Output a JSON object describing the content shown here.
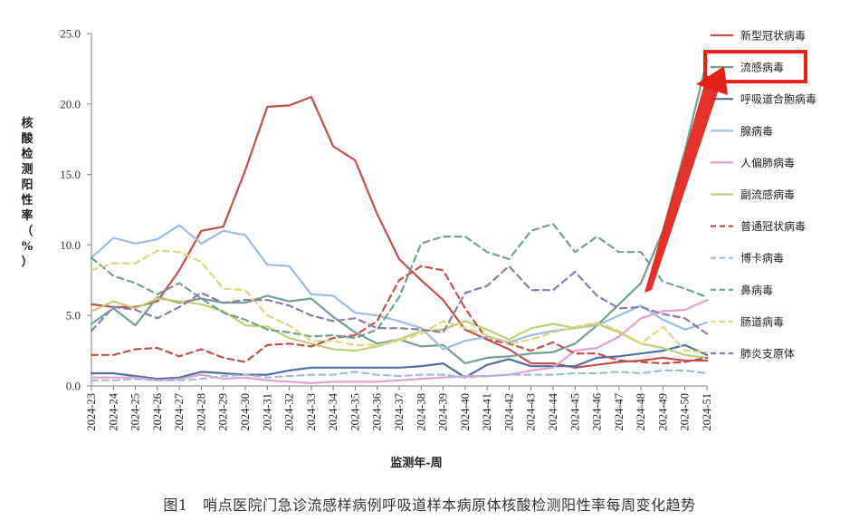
{
  "figure_caption": "图1　哨点医院门急诊流感样病例呼吸道样本病原体核酸检测阳性率每周变化趋势",
  "highlight": {
    "target": "流感病毒",
    "color": "#e32019"
  },
  "chart_data": {
    "type": "line",
    "xlabel": "监测年-周",
    "ylabel": "核酸检测阳性率（%）",
    "ylim": [
      0,
      25
    ],
    "yticks": [
      "0.0",
      "5.0",
      "10.0",
      "15.0",
      "20.0",
      "25.0"
    ],
    "grid": false,
    "legend_position": "right",
    "categories": [
      "2024-23",
      "2024-24",
      "2024-25",
      "2024-26",
      "2024-27",
      "2024-28",
      "2024-29",
      "2024-30",
      "2024-31",
      "2024-32",
      "2024-33",
      "2024-34",
      "2024-35",
      "2024-36",
      "2024-37",
      "2024-38",
      "2024-39",
      "2024-40",
      "2024-41",
      "2024-42",
      "2024-43",
      "2024-44",
      "2024-45",
      "2024-46",
      "2024-47",
      "2024-48",
      "2024-49",
      "2024-50",
      "2024-51"
    ],
    "series": [
      {
        "name": "新型冠状病毒",
        "color": "#c0504d",
        "dash": false,
        "values": [
          5.8,
          5.6,
          5.6,
          6.0,
          8.2,
          11.0,
          11.3,
          15.3,
          19.8,
          19.9,
          20.5,
          17.0,
          16.0,
          12.2,
          9.0,
          7.5,
          6.1,
          4.0,
          3.3,
          2.6,
          1.6,
          1.6,
          1.3,
          1.5,
          1.7,
          1.8,
          2.0,
          1.8,
          1.8
        ]
      },
      {
        "name": "流感病毒",
        "color": "#73a08e",
        "dash": false,
        "values": [
          4.4,
          5.5,
          4.3,
          6.3,
          5.9,
          6.2,
          5.9,
          5.9,
          6.4,
          6.0,
          6.2,
          4.9,
          3.8,
          3.0,
          3.3,
          2.8,
          2.9,
          1.6,
          2.0,
          2.1,
          2.3,
          2.4,
          3.0,
          4.3,
          5.8,
          7.3,
          11.0,
          16.7,
          23.1
        ]
      },
      {
        "name": "呼吸道合胞病毒",
        "color": "#4f6fa0",
        "dash": false,
        "values": [
          0.9,
          0.9,
          0.7,
          0.5,
          0.6,
          1.0,
          0.9,
          0.8,
          0.8,
          1.1,
          1.3,
          1.3,
          1.3,
          1.3,
          1.3,
          1.4,
          1.6,
          0.6,
          1.5,
          1.9,
          1.4,
          1.4,
          1.4,
          2.0,
          2.1,
          2.3,
          2.5,
          2.9,
          2.2
        ]
      },
      {
        "name": "腺病毒",
        "color": "#9dbce0",
        "dash": false,
        "values": [
          9.1,
          10.5,
          10.1,
          10.4,
          11.4,
          10.1,
          11.0,
          10.7,
          8.6,
          8.5,
          6.5,
          6.4,
          5.2,
          5.0,
          4.6,
          4.1,
          2.6,
          3.2,
          3.5,
          3.1,
          3.6,
          3.9,
          4.1,
          4.3,
          5.0,
          5.7,
          4.7,
          4.0,
          4.5
        ]
      },
      {
        "name": "人偏肺病毒",
        "color": "#e3a0c8",
        "dash": false,
        "values": [
          0.6,
          0.6,
          0.6,
          0.4,
          0.5,
          0.8,
          0.5,
          0.6,
          0.4,
          0.3,
          0.2,
          0.3,
          0.3,
          0.3,
          0.4,
          0.5,
          0.6,
          0.7,
          0.7,
          0.8,
          1.1,
          1.3,
          2.5,
          2.7,
          3.5,
          4.8,
          5.3,
          5.4,
          6.1
        ]
      },
      {
        "name": "副流感病毒",
        "color": "#c3cc76",
        "dash": false,
        "values": [
          5.3,
          6.0,
          5.5,
          6.2,
          6.0,
          5.8,
          5.3,
          4.3,
          4.2,
          3.4,
          3.0,
          2.6,
          2.5,
          2.8,
          3.3,
          3.9,
          4.0,
          4.6,
          4.0,
          3.3,
          4.1,
          4.4,
          4.1,
          4.4,
          3.8,
          3.0,
          2.7,
          2.2,
          2.0
        ]
      },
      {
        "name": "普通冠状病毒",
        "color": "#c0504d",
        "dash": true,
        "values": [
          2.2,
          2.2,
          2.6,
          2.7,
          2.1,
          2.6,
          2.0,
          1.7,
          2.9,
          3.0,
          2.8,
          3.4,
          3.6,
          4.6,
          7.5,
          8.5,
          8.2,
          5.5,
          3.3,
          3.0,
          2.5,
          3.1,
          2.3,
          2.3,
          1.8,
          1.7,
          1.6,
          1.7,
          2.0
        ]
      },
      {
        "name": "博卡病毒",
        "color": "#9dbce0",
        "dash": true,
        "values": [
          0.4,
          0.4,
          0.5,
          0.4,
          0.4,
          0.5,
          0.7,
          0.8,
          0.6,
          0.7,
          0.8,
          0.8,
          1.0,
          0.8,
          0.7,
          0.8,
          0.8,
          0.6,
          0.7,
          0.8,
          0.8,
          0.8,
          0.9,
          0.9,
          1.0,
          0.9,
          1.1,
          1.1,
          0.9
        ]
      },
      {
        "name": "鼻病毒",
        "color": "#73a08e",
        "dash": true,
        "values": [
          9.1,
          7.8,
          7.3,
          6.5,
          7.3,
          6.2,
          5.2,
          4.7,
          4.0,
          3.8,
          3.5,
          3.6,
          3.4,
          4.0,
          6.3,
          10.1,
          10.6,
          10.6,
          9.5,
          9.0,
          11.0,
          11.5,
          9.5,
          10.6,
          9.5,
          9.5,
          7.4,
          6.9,
          6.3
        ]
      },
      {
        "name": "肠道病毒",
        "color": "#d9d97f",
        "dash": true,
        "values": [
          8.2,
          8.7,
          8.7,
          9.6,
          9.5,
          8.8,
          6.9,
          6.8,
          5.0,
          4.3,
          3.2,
          3.2,
          2.9,
          2.9,
          3.2,
          3.7,
          4.6,
          4.1,
          3.6,
          3.0,
          3.3,
          3.8,
          4.2,
          4.5,
          3.9,
          3.0,
          4.2,
          2.5,
          2.4
        ]
      },
      {
        "name": "肺炎支原体",
        "color": "#8c7aa8",
        "dash": true,
        "values": [
          3.9,
          5.6,
          5.4,
          4.8,
          5.6,
          6.6,
          5.9,
          6.1,
          6.1,
          5.7,
          5.0,
          4.6,
          4.8,
          4.1,
          4.1,
          4.0,
          3.8,
          6.6,
          7.1,
          8.5,
          6.8,
          6.8,
          8.1,
          6.4,
          5.5,
          5.6,
          5.1,
          4.8,
          3.7
        ]
      }
    ]
  }
}
